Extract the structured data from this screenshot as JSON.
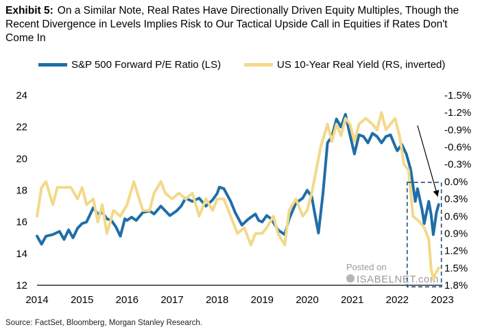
{
  "title": {
    "label": "Exhibit 5:",
    "text": "On a Similar Note, Real Rates Have Directionally Driven Equity Multiples, Though the Recent Divergence in Levels Implies Risk to Our Tactical Upside Call in Equities if Rates Don't Come In"
  },
  "legend": {
    "pe": "S&P 500 Forward P/E Ratio (LS)",
    "yield": "US 10-Year Real Yield (RS, inverted)"
  },
  "source": "Source: FactSet, Bloomberg, Morgan Stanley Research.",
  "watermark": {
    "line1": "Posted on",
    "line2": "ISABELNET.com"
  },
  "colors": {
    "pe": "#1f6ea7",
    "yield": "#f2d98a",
    "annotation": "#1f4e79"
  },
  "chart_data": {
    "type": "line",
    "x_start": 2014,
    "x_end": 2023,
    "x_ticks": [
      "2014",
      "2015",
      "2016",
      "2017",
      "2018",
      "2019",
      "2020",
      "2021",
      "2022",
      "2023"
    ],
    "left_axis": {
      "ylim": [
        12,
        24
      ],
      "ticks": [
        "12",
        "14",
        "16",
        "18",
        "20",
        "22",
        "24"
      ],
      "values": [
        12,
        14,
        16,
        18,
        20,
        22,
        24
      ]
    },
    "right_axis": {
      "inverted": true,
      "ylim": [
        1.8,
        -1.5
      ],
      "ticks": [
        "1.8%",
        "1.5%",
        "1.2%",
        "0.9%",
        "0.6%",
        "0.3%",
        "0.0%",
        "-0.3%",
        "-0.6%",
        "-0.9%",
        "-1.2%",
        "-1.5%"
      ],
      "values": [
        1.8,
        1.5,
        1.2,
        0.9,
        0.6,
        0.3,
        0.0,
        -0.3,
        -0.6,
        -0.9,
        -1.2,
        -1.5
      ]
    },
    "series": [
      {
        "name": "S&P 500 Forward P/E Ratio (LS)",
        "axis": "left",
        "x": [
          2014.0,
          2014.1,
          2014.2,
          2014.35,
          2014.5,
          2014.6,
          2014.7,
          2014.8,
          2014.9,
          2015.0,
          2015.1,
          2015.25,
          2015.35,
          2015.45,
          2015.55,
          2015.65,
          2015.75,
          2015.85,
          2015.95,
          2016.0,
          2016.1,
          2016.2,
          2016.35,
          2016.5,
          2016.6,
          2016.75,
          2016.85,
          2016.95,
          2017.1,
          2017.2,
          2017.3,
          2017.45,
          2017.6,
          2017.75,
          2017.9,
          2018.0,
          2018.05,
          2018.15,
          2018.3,
          2018.4,
          2018.55,
          2018.7,
          2018.85,
          2018.92,
          2019.0,
          2019.1,
          2019.2,
          2019.35,
          2019.5,
          2019.6,
          2019.75,
          2019.9,
          2020.0,
          2020.1,
          2020.17,
          2020.25,
          2020.35,
          2020.45,
          2020.55,
          2020.65,
          2020.75,
          2020.85,
          2020.95,
          2021.05,
          2021.15,
          2021.25,
          2021.35,
          2021.45,
          2021.55,
          2021.65,
          2021.75,
          2021.85,
          2021.95,
          2022.0,
          2022.1,
          2022.2,
          2022.3,
          2022.4,
          2022.45,
          2022.55,
          2022.6,
          2022.7,
          2022.75,
          2022.8,
          2022.87,
          2022.92
        ],
        "values": [
          15.1,
          14.6,
          15.1,
          15.2,
          15.4,
          14.9,
          15.5,
          15.0,
          15.6,
          15.9,
          16.0,
          16.9,
          16.5,
          16.6,
          16.2,
          16.1,
          15.7,
          15.1,
          16.2,
          16.1,
          16.3,
          16.1,
          16.6,
          16.7,
          16.5,
          17.0,
          16.7,
          16.4,
          16.7,
          17.0,
          17.5,
          17.3,
          17.5,
          17.0,
          17.4,
          17.8,
          18.2,
          18.1,
          17.3,
          16.6,
          15.8,
          16.2,
          16.5,
          16.1,
          16.0,
          16.4,
          16.2,
          15.5,
          15.2,
          16.2,
          17.2,
          17.5,
          18.0,
          17.6,
          16.5,
          15.3,
          17.8,
          21.0,
          21.4,
          22.5,
          22.0,
          22.8,
          21.5,
          20.3,
          21.5,
          21.4,
          21.0,
          21.6,
          21.4,
          21.0,
          21.4,
          21.5,
          20.8,
          20.5,
          20.9,
          20.3,
          19.3,
          17.3,
          18.1,
          16.8,
          15.9,
          17.3,
          16.5,
          15.2,
          16.6,
          17.1
        ]
      },
      {
        "name": "US 10-Year Real Yield (RS, inverted)",
        "axis": "right",
        "x": [
          2014.0,
          2014.1,
          2014.2,
          2014.35,
          2014.45,
          2014.6,
          2014.75,
          2014.9,
          2015.0,
          2015.1,
          2015.25,
          2015.35,
          2015.45,
          2015.55,
          2015.7,
          2015.85,
          2016.0,
          2016.15,
          2016.35,
          2016.5,
          2016.6,
          2016.75,
          2016.85,
          2017.0,
          2017.15,
          2017.3,
          2017.45,
          2017.6,
          2017.75,
          2017.9,
          2018.0,
          2018.15,
          2018.3,
          2018.45,
          2018.6,
          2018.75,
          2018.85,
          2019.0,
          2019.1,
          2019.25,
          2019.35,
          2019.5,
          2019.6,
          2019.75,
          2019.9,
          2020.0,
          2020.1,
          2020.2,
          2020.3,
          2020.45,
          2020.55,
          2020.65,
          2020.75,
          2020.85,
          2020.95,
          2021.05,
          2021.15,
          2021.3,
          2021.45,
          2021.55,
          2021.65,
          2021.75,
          2021.85,
          2021.95,
          2022.05,
          2022.15,
          2022.25,
          2022.35,
          2022.5,
          2022.6,
          2022.7,
          2022.75,
          2022.8,
          2022.85,
          2022.92
        ],
        "values": [
          0.6,
          0.1,
          0.0,
          0.4,
          0.1,
          0.1,
          0.1,
          0.3,
          0.1,
          0.4,
          0.3,
          0.7,
          0.4,
          0.9,
          0.5,
          0.6,
          0.4,
          0.0,
          0.5,
          0.5,
          0.2,
          0.0,
          0.2,
          0.3,
          0.2,
          0.3,
          0.2,
          0.6,
          0.3,
          0.5,
          0.3,
          0.3,
          0.6,
          0.9,
          0.8,
          1.1,
          0.9,
          0.9,
          0.8,
          0.6,
          0.9,
          1.1,
          0.5,
          0.3,
          0.6,
          0.5,
          0.2,
          -0.2,
          -0.6,
          -1.0,
          -0.7,
          -1.0,
          -0.8,
          -1.1,
          -1.0,
          -0.7,
          -1.0,
          -1.1,
          -1.0,
          -0.9,
          -1.2,
          -0.9,
          -1.0,
          -1.1,
          -0.8,
          -0.3,
          -0.2,
          0.6,
          0.7,
          0.8,
          1.0,
          1.5,
          1.7,
          1.6,
          1.5
        ]
      }
    ],
    "annotations": [
      {
        "type": "arrow",
        "from": [
          2022.45,
          22.1
        ],
        "to": [
          2022.9,
          17.6
        ]
      },
      {
        "type": "dashed-box",
        "x_range": [
          2022.22,
          2022.98
        ],
        "y_range": [
          11.9,
          18.5
        ]
      }
    ]
  }
}
